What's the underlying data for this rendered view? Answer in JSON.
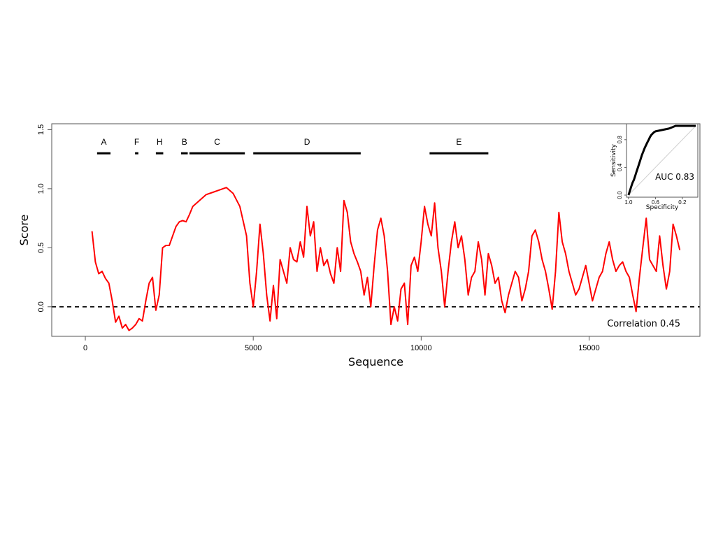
{
  "chart_data": {
    "type": "line",
    "xlabel": "Sequence",
    "ylabel": "Score",
    "xlim": [
      -1000,
      18300
    ],
    "ylim": [
      -0.25,
      1.55
    ],
    "x_ticks": [
      {
        "value": 0,
        "label": "0"
      },
      {
        "value": 5000,
        "label": "5000"
      },
      {
        "value": 10000,
        "label": "10000"
      },
      {
        "value": 15000,
        "label": "15000"
      }
    ],
    "y_ticks": [
      {
        "value": 0,
        "label": "0.0"
      },
      {
        "value": 0.5,
        "label": "0.5"
      },
      {
        "value": 1,
        "label": "1.0"
      },
      {
        "value": 1.5,
        "label": "1.5"
      }
    ],
    "reference_line": {
      "y": 0,
      "style": "dashed",
      "color": "#000000"
    },
    "series": [
      {
        "color": "#ff0000",
        "x": [
          200,
          300,
          400,
          500,
          600,
          700,
          800,
          900,
          1000,
          1100,
          1200,
          1300,
          1400,
          1500,
          1600,
          1700,
          1800,
          1900,
          2000,
          2100,
          2200,
          2300,
          2400,
          2500,
          2600,
          2700,
          2800,
          2900,
          3000,
          3100,
          3200,
          3400,
          3600,
          3800,
          4000,
          4200,
          4400,
          4600,
          4800,
          4900,
          5000,
          5100,
          5200,
          5300,
          5400,
          5500,
          5600,
          5700,
          5800,
          5900,
          6000,
          6100,
          6200,
          6300,
          6400,
          6500,
          6600,
          6700,
          6800,
          6900,
          7000,
          7100,
          7200,
          7300,
          7400,
          7500,
          7600,
          7700,
          7800,
          7900,
          8000,
          8100,
          8200,
          8300,
          8400,
          8500,
          8600,
          8700,
          8800,
          8900,
          9000,
          9100,
          9200,
          9300,
          9400,
          9500,
          9600,
          9700,
          9800,
          9900,
          10000,
          10100,
          10200,
          10300,
          10400,
          10500,
          10600,
          10700,
          10800,
          10900,
          11000,
          11100,
          11200,
          11300,
          11400,
          11500,
          11600,
          11700,
          11800,
          11900,
          12000,
          12100,
          12200,
          12300,
          12400,
          12500,
          12600,
          12700,
          12800,
          12900,
          13000,
          13100,
          13200,
          13300,
          13400,
          13500,
          13600,
          13700,
          13800,
          13900,
          14000,
          14100,
          14200,
          14300,
          14400,
          14500,
          14600,
          14700,
          14800,
          14900,
          15000,
          15100,
          15200,
          15300,
          15400,
          15500,
          15600,
          15700,
          15800,
          15900,
          16000,
          16100,
          16200,
          16300,
          16400,
          16500,
          16600,
          16700,
          16800,
          16900,
          17000,
          17100,
          17200,
          17300,
          17400,
          17500,
          17600,
          17700
        ],
        "y": [
          0.64,
          0.38,
          0.28,
          0.3,
          0.24,
          0.2,
          0.05,
          -0.13,
          -0.08,
          -0.18,
          -0.15,
          -0.2,
          -0.18,
          -0.15,
          -0.1,
          -0.12,
          0.05,
          0.2,
          0.25,
          -0.03,
          0.1,
          0.5,
          0.52,
          0.52,
          0.6,
          0.68,
          0.72,
          0.73,
          0.72,
          0.78,
          0.85,
          0.9,
          0.95,
          0.97,
          0.99,
          1.01,
          0.96,
          0.85,
          0.6,
          0.2,
          0.0,
          0.3,
          0.7,
          0.45,
          0.1,
          -0.12,
          0.18,
          -0.1,
          0.4,
          0.3,
          0.2,
          0.5,
          0.4,
          0.38,
          0.55,
          0.42,
          0.85,
          0.6,
          0.72,
          0.3,
          0.5,
          0.35,
          0.4,
          0.28,
          0.2,
          0.5,
          0.3,
          0.9,
          0.8,
          0.55,
          0.45,
          0.38,
          0.3,
          0.1,
          0.25,
          0.0,
          0.35,
          0.65,
          0.75,
          0.6,
          0.3,
          -0.15,
          0.0,
          -0.12,
          0.15,
          0.2,
          -0.15,
          0.35,
          0.42,
          0.3,
          0.55,
          0.85,
          0.7,
          0.6,
          0.88,
          0.5,
          0.3,
          0.0,
          0.3,
          0.55,
          0.72,
          0.5,
          0.6,
          0.4,
          0.1,
          0.25,
          0.3,
          0.55,
          0.4,
          0.1,
          0.45,
          0.35,
          0.2,
          0.25,
          0.05,
          -0.05,
          0.1,
          0.2,
          0.3,
          0.25,
          0.05,
          0.15,
          0.3,
          0.6,
          0.65,
          0.55,
          0.4,
          0.3,
          0.15,
          -0.02,
          0.3,
          0.8,
          0.55,
          0.45,
          0.3,
          0.2,
          0.1,
          0.15,
          0.25,
          0.35,
          0.2,
          0.05,
          0.15,
          0.25,
          0.3,
          0.45,
          0.55,
          0.4,
          0.3,
          0.35,
          0.38,
          0.3,
          0.25,
          0.1,
          -0.04,
          0.25,
          0.5,
          0.75,
          0.4,
          0.35,
          0.3,
          0.6,
          0.35,
          0.15,
          0.3,
          0.7,
          0.6,
          0.48
        ]
      }
    ],
    "regions": [
      {
        "label": "A",
        "start": 350,
        "end": 750
      },
      {
        "label": "F",
        "start": 1480,
        "end": 1580
      },
      {
        "label": "H",
        "start": 2100,
        "end": 2320
      },
      {
        "label": "B",
        "start": 2850,
        "end": 3050
      },
      {
        "label": "C",
        "start": 3100,
        "end": 4750
      },
      {
        "label": "D",
        "start": 5000,
        "end": 8200
      },
      {
        "label": "E",
        "start": 10250,
        "end": 12000
      }
    ],
    "regions_y": 1.3,
    "annotation": "Correlation 0.45",
    "inset": {
      "type": "line",
      "xlabel": "Specificity",
      "ylabel": "Sensitivity",
      "x_ticks": [
        {
          "value": 1.0,
          "label": "1.0"
        },
        {
          "value": 0.6,
          "label": "0.6"
        },
        {
          "value": 0.2,
          "label": "0.2"
        }
      ],
      "y_ticks": [
        {
          "value": 0.0,
          "label": "0.0"
        },
        {
          "value": 0.4,
          "label": "0.4"
        },
        {
          "value": 0.8,
          "label": "0.8"
        }
      ],
      "xlim": [
        1.03,
        -0.03
      ],
      "ylim": [
        -0.03,
        1.03
      ],
      "annotation": "AUC 0.83",
      "roc": {
        "specificity": [
          1.0,
          0.98,
          0.96,
          0.94,
          0.92,
          0.9,
          0.88,
          0.86,
          0.84,
          0.82,
          0.8,
          0.78,
          0.76,
          0.74,
          0.72,
          0.7,
          0.68,
          0.66,
          0.64,
          0.62,
          0.6,
          0.55,
          0.5,
          0.45,
          0.4,
          0.35,
          0.3,
          0.28,
          0.2,
          0.1,
          0.0
        ],
        "sensitivity": [
          0.0,
          0.06,
          0.12,
          0.18,
          0.22,
          0.28,
          0.34,
          0.4,
          0.46,
          0.52,
          0.58,
          0.63,
          0.68,
          0.72,
          0.76,
          0.8,
          0.84,
          0.87,
          0.89,
          0.91,
          0.92,
          0.93,
          0.94,
          0.95,
          0.96,
          0.98,
          1.0,
          1.0,
          1.0,
          1.0,
          1.0
        ]
      }
    }
  }
}
